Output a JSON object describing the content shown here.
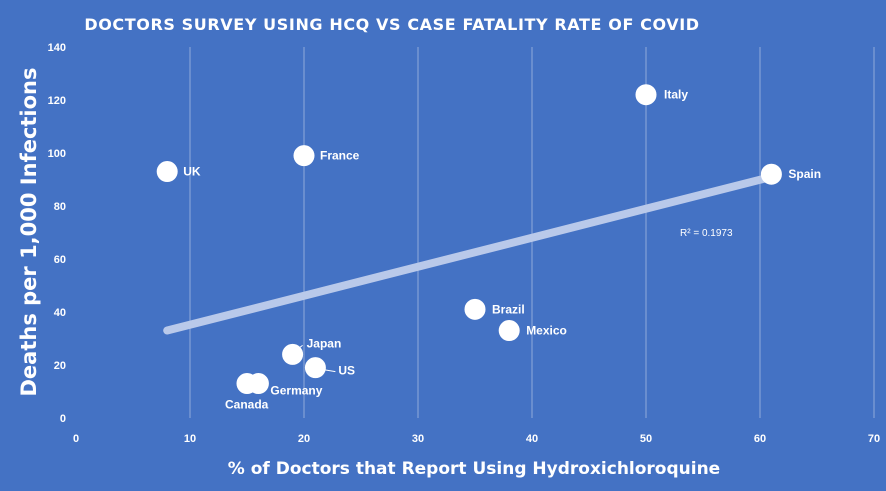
{
  "chart_data": {
    "type": "scatter",
    "title": "DOCTORS SURVEY USING HCQ VS CASE FATALITY RATE OF COVID",
    "xlabel": "% of Doctors that Report Using Hydroxichloroquine",
    "ylabel": "Deaths per 1,000 Infections",
    "xlim": [
      0,
      70
    ],
    "ylim": [
      0,
      140
    ],
    "x_ticks": [
      0,
      10,
      20,
      30,
      40,
      50,
      60,
      70
    ],
    "y_ticks": [
      0,
      20,
      40,
      60,
      80,
      100,
      120,
      140
    ],
    "grid": "vertical",
    "series": [
      {
        "points": [
          {
            "label": "UK",
            "x": 8,
            "y": 93
          },
          {
            "label": "France",
            "x": 20,
            "y": 99
          },
          {
            "label": "Italy",
            "x": 50,
            "y": 122
          },
          {
            "label": "Spain",
            "x": 61,
            "y": 92
          },
          {
            "label": "Brazil",
            "x": 35,
            "y": 41
          },
          {
            "label": "Mexico",
            "x": 38,
            "y": 33
          },
          {
            "label": "Japan",
            "x": 19,
            "y": 24
          },
          {
            "label": "US",
            "x": 21,
            "y": 19
          },
          {
            "label": "Germany",
            "x": 16,
            "y": 13
          },
          {
            "label": "Canada",
            "x": 15,
            "y": 13
          }
        ]
      }
    ],
    "trendline": {
      "type": "linear",
      "from": [
        8,
        33
      ],
      "to": [
        61,
        91
      ],
      "r_squared": "R² = 0.1973"
    },
    "colors": {
      "background": "#4472c4",
      "points": "#ffffff",
      "trendline": "#b9c9ea",
      "grid": "#8fa9da"
    }
  }
}
